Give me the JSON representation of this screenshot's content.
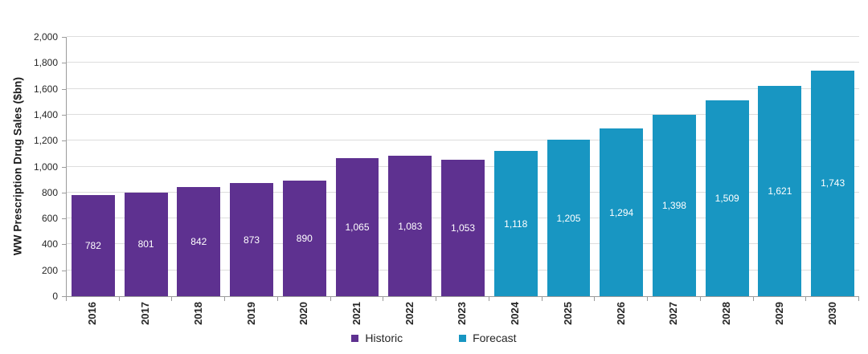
{
  "chart_data": {
    "type": "bar",
    "title": "",
    "xlabel": "",
    "ylabel": "WW Prescription Drug Sales ($bn)",
    "ylim": [
      0,
      2000
    ],
    "ytick_interval": 200,
    "yticks": [
      {
        "value": 0,
        "label": "0"
      },
      {
        "value": 200,
        "label": "200"
      },
      {
        "value": 400,
        "label": "400"
      },
      {
        "value": 600,
        "label": "600"
      },
      {
        "value": 800,
        "label": "800"
      },
      {
        "value": 1000,
        "label": "1,000"
      },
      {
        "value": 1200,
        "label": "1,200"
      },
      {
        "value": 1400,
        "label": "1,400"
      },
      {
        "value": 1600,
        "label": "1,600"
      },
      {
        "value": 1800,
        "label": "1,800"
      },
      {
        "value": 2000,
        "label": "2,000"
      }
    ],
    "grid": true,
    "legend_position": "bottom",
    "categories": [
      "2016",
      "2017",
      "2018",
      "2019",
      "2020",
      "2021",
      "2022",
      "2023",
      "2024",
      "2025",
      "2026",
      "2027",
      "2028",
      "2029",
      "2030"
    ],
    "series": [
      {
        "name": "Historic",
        "color": "#5E3190",
        "values": [
          782,
          801,
          842,
          873,
          890,
          1065,
          1083,
          1053,
          null,
          null,
          null,
          null,
          null,
          null,
          null
        ]
      },
      {
        "name": "Forecast",
        "color": "#1896C2",
        "values": [
          null,
          null,
          null,
          null,
          null,
          null,
          null,
          null,
          1118,
          1205,
          1294,
          1398,
          1509,
          1621,
          1743
        ]
      }
    ],
    "bar_labels": [
      "782",
      "801",
      "842",
      "873",
      "890",
      "1,065",
      "1,083",
      "1,053",
      "1,118",
      "1,205",
      "1,294",
      "1,398",
      "1,509",
      "1,621",
      "1,743"
    ]
  },
  "legend": {
    "items": [
      {
        "label": "Historic",
        "color": "#5E3190"
      },
      {
        "label": "Forecast",
        "color": "#1896C2"
      }
    ]
  },
  "colors": {
    "historic": "#5E3190",
    "forecast": "#1896C2",
    "gridline": "#dddddd",
    "axis": "#9b9b9b",
    "bar_label_text": "#ffffff",
    "tick_text": "#262626"
  }
}
